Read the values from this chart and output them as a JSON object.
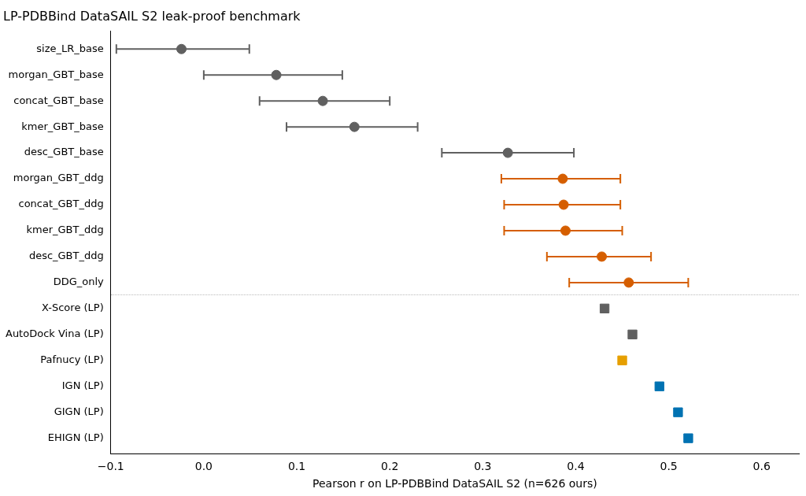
{
  "chart_data": {
    "type": "scatter",
    "orientation": "horizontal",
    "title": "LP-PDBBind DataSAIL S2 leak-proof benchmark",
    "xlabel": "Pearson r on LP-PDBBind DataSAIL S2 (n=626 ours)",
    "categories": [
      "size_LR_base",
      "morgan_GBT_base",
      "concat_GBT_base",
      "kmer_GBT_base",
      "desc_GBT_base",
      "morgan_GBT_ddg",
      "concat_GBT_ddg",
      "kmer_GBT_ddg",
      "desc_GBT_ddg",
      "DDG_only",
      "X-Score (LP)",
      "AutoDock Vina (LP)",
      "Pafnucy (LP)",
      "IGN (LP)",
      "GIGN (LP)",
      "EHIGN (LP)"
    ],
    "series": [
      {
        "color": "#606060",
        "marker": "circle",
        "values": [
          -0.024,
          0.078,
          0.128,
          0.162,
          0.327,
          null,
          null,
          null,
          null,
          null,
          null,
          null,
          null,
          null,
          null,
          null
        ],
        "errors": [
          [
            -0.094,
            0.049
          ],
          [
            0.0,
            0.149
          ],
          [
            0.06,
            0.2
          ],
          [
            0.089,
            0.23
          ],
          [
            0.256,
            0.398
          ],
          null,
          null,
          null,
          null,
          null,
          null,
          null,
          null,
          null,
          null,
          null
        ]
      },
      {
        "color": "#d55e00",
        "marker": "circle",
        "values": [
          null,
          null,
          null,
          null,
          null,
          0.386,
          0.387,
          0.389,
          0.428,
          0.457,
          null,
          null,
          null,
          null,
          null,
          null
        ],
        "errors": [
          null,
          null,
          null,
          null,
          null,
          [
            0.32,
            0.448
          ],
          [
            0.323,
            0.448
          ],
          [
            0.323,
            0.45
          ],
          [
            0.369,
            0.481
          ],
          [
            0.393,
            0.521
          ],
          null,
          null,
          null,
          null,
          null,
          null
        ]
      },
      {
        "marker": "square",
        "colors": [
          null,
          null,
          null,
          null,
          null,
          null,
          null,
          null,
          null,
          null,
          "#606060",
          "#606060",
          "#e69f00",
          "#0072b2",
          "#0072b2",
          "#0072b2"
        ],
        "values": [
          null,
          null,
          null,
          null,
          null,
          null,
          null,
          null,
          null,
          null,
          0.431,
          0.461,
          0.45,
          0.49,
          0.51,
          0.521
        ]
      }
    ],
    "xlim": [
      -0.1,
      0.64
    ],
    "xticks": [
      {
        "value": -0.1,
        "label": "−0.1"
      },
      {
        "value": 0,
        "label": "0.0"
      },
      {
        "value": 0.1,
        "label": "0.1"
      },
      {
        "value": 0.2,
        "label": "0.2"
      },
      {
        "value": 0.3,
        "label": "0.3"
      },
      {
        "value": 0.4,
        "label": "0.4"
      },
      {
        "value": 0.5,
        "label": "0.5"
      },
      {
        "value": 0.6,
        "label": "0.6"
      }
    ],
    "grid": false,
    "legend": false
  }
}
